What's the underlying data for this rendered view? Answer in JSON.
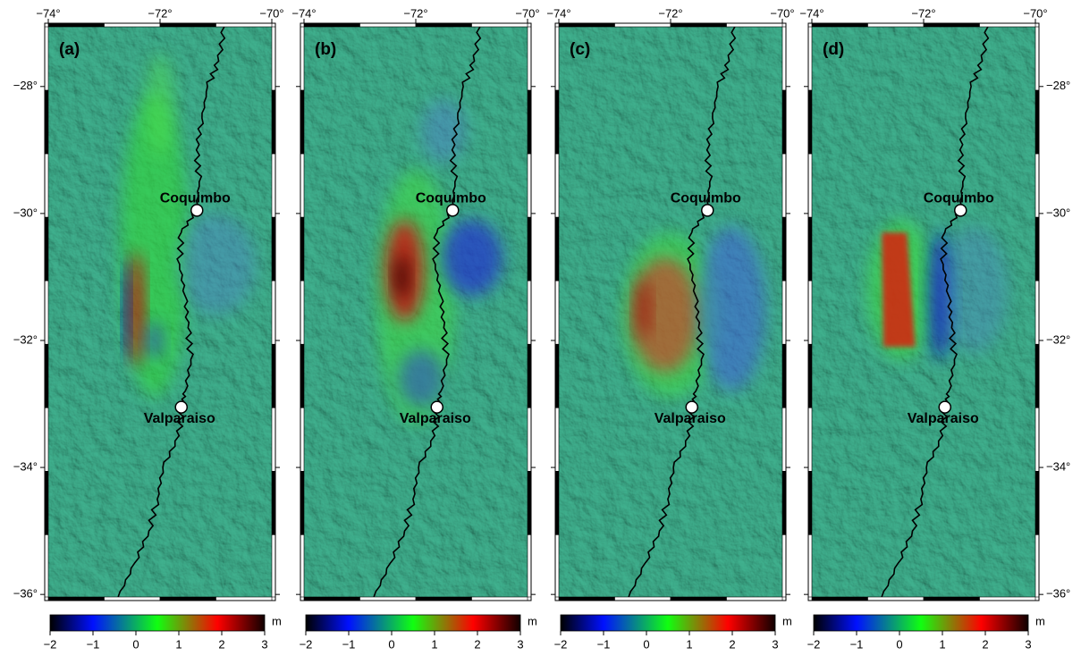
{
  "panels": [
    {
      "label": "(a)"
    },
    {
      "label": "(b)"
    },
    {
      "label": "(c)"
    },
    {
      "label": "(d)"
    }
  ],
  "lonlim": [
    -74,
    -70
  ],
  "latlim": [
    -36.04,
    -27.06
  ],
  "lon_ticks": [
    {
      "value": -74,
      "label": "−74°"
    },
    {
      "value": -72,
      "label": "−72°"
    },
    {
      "value": -70,
      "label": "−70°"
    }
  ],
  "lat_ticks": [
    {
      "value": -28,
      "label": "−28°"
    },
    {
      "value": -30,
      "label": "−30°"
    },
    {
      "value": -32,
      "label": "−32°"
    },
    {
      "value": -34,
      "label": "−34°"
    },
    {
      "value": -36,
      "label": "−36°"
    }
  ],
  "cities": [
    {
      "name": "Coquimbo",
      "lon": -71.34,
      "lat": -29.95
    },
    {
      "name": "Valparaiso",
      "lon": -71.62,
      "lat": -33.05
    }
  ],
  "colorbar": {
    "unit": "m",
    "lim": [
      -2,
      3
    ],
    "ticks": [
      {
        "value": -2,
        "label": "−2"
      },
      {
        "value": -1,
        "label": "−1"
      },
      0,
      1,
      2,
      3
    ]
  }
}
